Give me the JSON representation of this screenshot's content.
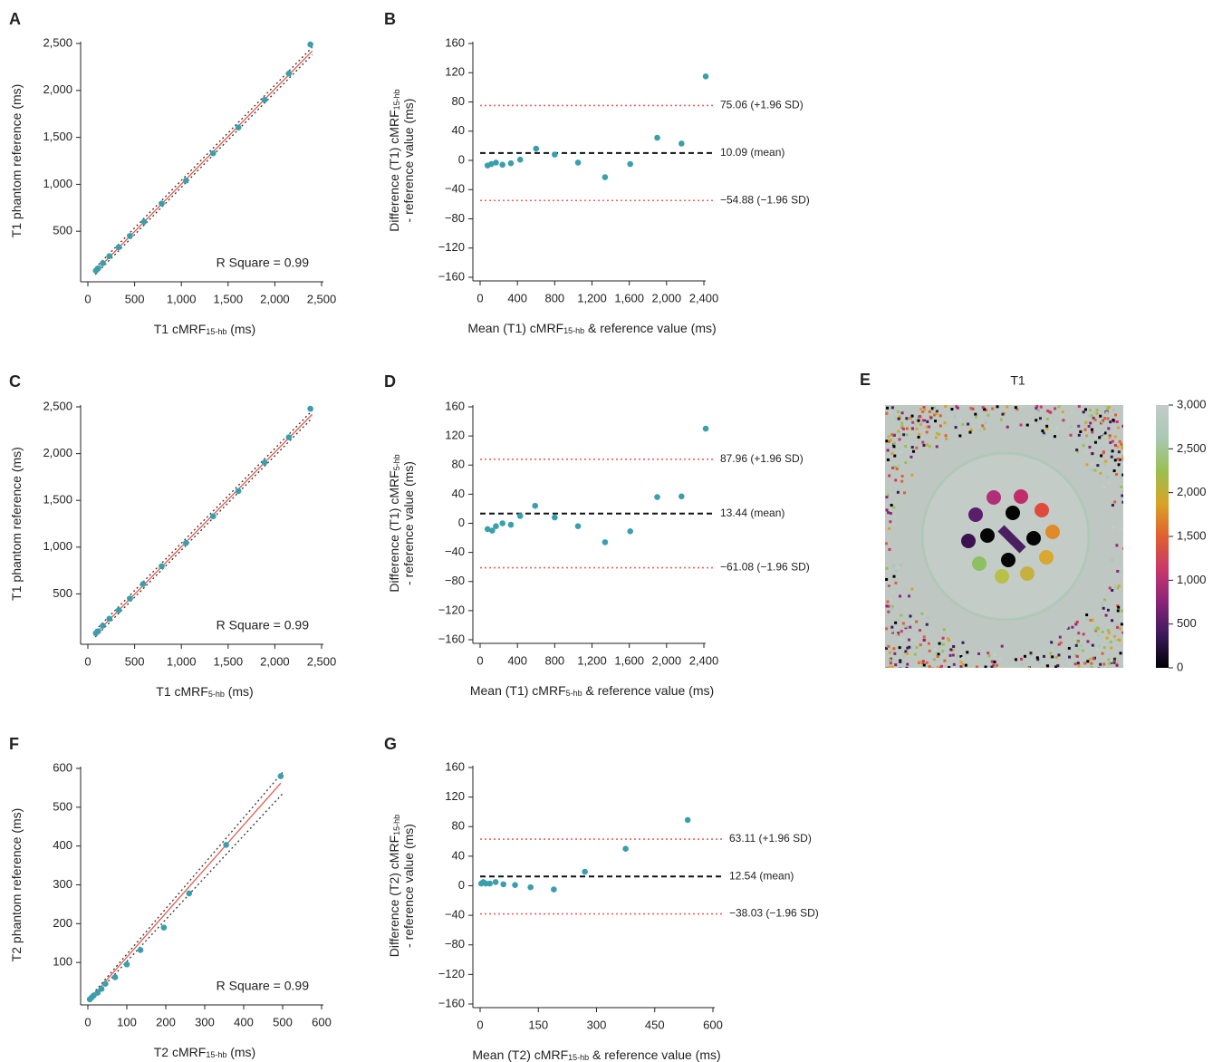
{
  "chart_data": [
    {
      "type": "scatter",
      "panel": "A",
      "xlim": [
        0,
        2500
      ],
      "ylim": [
        0,
        2500
      ],
      "xticks": [
        0,
        500,
        {
          "value": 1000,
          "label": "1,000"
        },
        {
          "value": 1500,
          "label": "1,500"
        },
        {
          "value": 2000,
          "label": "2,000"
        },
        {
          "value": 2500,
          "label": "2,500"
        }
      ],
      "yticks": [
        500,
        {
          "value": 1000,
          "label": "1,000"
        },
        {
          "value": 1500,
          "label": "1,500"
        },
        {
          "value": 2000,
          "label": "2,000"
        },
        {
          "value": 2500,
          "label": "2,500"
        }
      ],
      "xlabel": [
        [
          "T1 cMRF",
          "15-hb",
          " (ms)"
        ]
      ],
      "ylabel": [
        [
          "T1 phantom reference (ms)"
        ]
      ],
      "annotation": "R Square = 0.99",
      "color": "#3a9fad",
      "x": [
        85,
        110,
        160,
        230,
        330,
        450,
        600,
        790,
        1050,
        1340,
        1610,
        1890,
        2150,
        2380
      ],
      "y": [
        80,
        105,
        160,
        235,
        330,
        450,
        600,
        795,
        1040,
        1330,
        1605,
        1900,
        2180,
        2490
      ],
      "lines": [
        {
          "style": "dotted",
          "color": "#333333",
          "x": [
            80,
            2400
          ],
          "y": [
            40,
            2380
          ]
        },
        {
          "style": "dotted",
          "color": "#333333",
          "x": [
            80,
            2400
          ],
          "y": [
            110,
            2460
          ]
        },
        {
          "style": "solid",
          "color": "#e8584a",
          "x": [
            80,
            2400
          ],
          "y": [
            72,
            2420
          ]
        }
      ]
    },
    {
      "type": "bland-altman",
      "panel": "B",
      "xlim": [
        0,
        2400
      ],
      "ylim": [
        -160,
        160
      ],
      "xticks": [
        0,
        400,
        800,
        {
          "value": 1200,
          "label": "1,200"
        },
        {
          "value": 1600,
          "label": "1,600"
        },
        {
          "value": 2000,
          "label": "2,000"
        },
        {
          "value": 2400,
          "label": "2,400"
        }
      ],
      "yticks": [
        {
          "value": -160,
          "label": "−160"
        },
        {
          "value": -120,
          "label": "−120"
        },
        {
          "value": -80,
          "label": "−80"
        },
        {
          "value": -40,
          "label": "−40"
        },
        0,
        40,
        80,
        120,
        160
      ],
      "xlabel": [
        [
          "Mean (T1) cMRF",
          "15-hb",
          " & reference value (ms)"
        ]
      ],
      "ylabel": [
        [
          "Difference (T1) cMRF",
          "15-hb"
        ],
        [
          "- reference value (ms)"
        ]
      ],
      "color": "#3a9fad",
      "x": [
        80,
        120,
        170,
        240,
        330,
        430,
        600,
        800,
        1050,
        1340,
        1610,
        1900,
        2160,
        2420
      ],
      "y": [
        -7,
        -5,
        -3,
        -6,
        -4,
        1,
        16,
        8,
        -3,
        -23,
        -5,
        31,
        23,
        115
      ],
      "hlines": [
        {
          "value": 75.06,
          "label": "75.06 (+1.96 SD)",
          "style": "dotted",
          "color": "#f06060"
        },
        {
          "value": 10.09,
          "label": "10.09 (mean)",
          "style": "dashed",
          "color": "#111111"
        },
        {
          "value": -54.88,
          "label": "−54.88 (−1.96 SD)",
          "style": "dotted",
          "color": "#f06060"
        }
      ]
    },
    {
      "type": "scatter",
      "panel": "C",
      "xlim": [
        0,
        2500
      ],
      "ylim": [
        0,
        2500
      ],
      "xticks": [
        0,
        500,
        {
          "value": 1000,
          "label": "1,000"
        },
        {
          "value": 1500,
          "label": "1,500"
        },
        {
          "value": 2000,
          "label": "2,000"
        },
        {
          "value": 2500,
          "label": "2,500"
        }
      ],
      "yticks": [
        500,
        {
          "value": 1000,
          "label": "1,000"
        },
        {
          "value": 1500,
          "label": "1,500"
        },
        {
          "value": 2000,
          "label": "2,000"
        },
        {
          "value": 2500,
          "label": "2,500"
        }
      ],
      "xlabel": [
        [
          "T1 cMRF",
          "5-hb",
          " (ms)"
        ]
      ],
      "ylabel": [
        [
          "T1 phantom reference (ms)"
        ]
      ],
      "annotation": "R Square = 0.99",
      "color": "#3a9fad",
      "x": [
        85,
        110,
        160,
        230,
        330,
        450,
        590,
        790,
        1050,
        1340,
        1610,
        1890,
        2150,
        2380
      ],
      "y": [
        80,
        100,
        160,
        235,
        325,
        450,
        605,
        795,
        1045,
        1330,
        1600,
        1905,
        2175,
        2480
      ],
      "lines": [
        {
          "style": "dotted",
          "color": "#333333",
          "x": [
            80,
            2400
          ],
          "y": [
            40,
            2380
          ]
        },
        {
          "style": "dotted",
          "color": "#333333",
          "x": [
            80,
            2400
          ],
          "y": [
            110,
            2460
          ]
        },
        {
          "style": "solid",
          "color": "#e8584a",
          "x": [
            80,
            2400
          ],
          "y": [
            72,
            2420
          ]
        }
      ]
    },
    {
      "type": "bland-altman",
      "panel": "D",
      "xlim": [
        0,
        2400
      ],
      "ylim": [
        -160,
        160
      ],
      "xticks": [
        0,
        400,
        800,
        {
          "value": 1200,
          "label": "1,200"
        },
        {
          "value": 1600,
          "label": "1,600"
        },
        {
          "value": 2000,
          "label": "2,000"
        },
        {
          "value": 2400,
          "label": "2,400"
        }
      ],
      "yticks": [
        {
          "value": -160,
          "label": "−160"
        },
        {
          "value": -120,
          "label": "−120"
        },
        {
          "value": -80,
          "label": "−80"
        },
        {
          "value": -40,
          "label": "−40"
        },
        0,
        40,
        80,
        120,
        160
      ],
      "xlabel": [
        [
          "Mean (T1) cMRF",
          "5-hb",
          " & reference value (ms)"
        ]
      ],
      "ylabel": [
        [
          "Difference (T1) cMRF",
          "5-hb"
        ],
        [
          "- reference value (ms)"
        ]
      ],
      "color": "#3a9fad",
      "x": [
        80,
        130,
        170,
        240,
        330,
        430,
        590,
        800,
        1050,
        1340,
        1610,
        1900,
        2160,
        2420
      ],
      "y": [
        -8,
        -10,
        -4,
        0,
        -2,
        10,
        24,
        8,
        -4,
        -26,
        -11,
        36,
        37,
        130
      ],
      "hlines": [
        {
          "value": 87.96,
          "label": "87.96 (+1.96 SD)",
          "style": "dotted",
          "color": "#f06060"
        },
        {
          "value": 13.44,
          "label": "13.44 (mean)",
          "style": "dashed",
          "color": "#111111"
        },
        {
          "value": -61.08,
          "label": "−61.08 (−1.96 SD)",
          "style": "dotted",
          "color": "#f06060"
        }
      ]
    },
    {
      "type": "image",
      "panel": "E",
      "title": "T1",
      "colorbar_lim": [
        0,
        3000
      ],
      "colorbar_ticks": [
        0,
        500,
        {
          "value": 1000,
          "label": "1,000"
        },
        {
          "value": 1500,
          "label": "1,500"
        },
        {
          "value": 2000,
          "label": "2,000"
        },
        {
          "value": 2500,
          "label": "2,500"
        },
        {
          "value": 3000,
          "label": "3,000"
        }
      ],
      "colormap": [
        "#000000",
        "#3a1a5c",
        "#8a2478",
        "#c8386a",
        "#e0602f",
        "#d9a326",
        "#98c050",
        "#a9c8b4",
        "#c2ccc8"
      ]
    },
    {
      "type": "scatter",
      "panel": "F",
      "xlim": [
        0,
        600
      ],
      "ylim": [
        0,
        600
      ],
      "xticks": [
        0,
        100,
        200,
        300,
        400,
        500,
        600
      ],
      "yticks": [
        100,
        200,
        300,
        400,
        500,
        600
      ],
      "xlabel": [
        [
          "T2 cMRF",
          "15-hb",
          " (ms)"
        ]
      ],
      "ylabel": [
        [
          "T2 phantom reference (ms)"
        ]
      ],
      "annotation": "R Square = 0.99",
      "color": "#3a9fad",
      "x": [
        5,
        10,
        15,
        25,
        35,
        45,
        70,
        100,
        135,
        195,
        260,
        355,
        495
      ],
      "y": [
        5,
        10,
        15,
        22,
        32,
        45,
        62,
        95,
        132,
        190,
        278,
        403,
        580
      ],
      "lines": [
        {
          "style": "dotted",
          "color": "#333333",
          "x": [
            5,
            500
          ],
          "y": [
            10,
            590
          ]
        },
        {
          "style": "dotted",
          "color": "#333333",
          "x": [
            5,
            500
          ],
          "y": [
            0,
            535
          ]
        },
        {
          "style": "solid",
          "color": "#e8584a",
          "x": [
            0,
            495
          ],
          "y": [
            0,
            562
          ]
        }
      ]
    },
    {
      "type": "bland-altman",
      "panel": "G",
      "xlim": [
        0,
        600
      ],
      "ylim": [
        -160,
        160
      ],
      "xticks": [
        0,
        150,
        300,
        450,
        600
      ],
      "yticks": [
        {
          "value": -160,
          "label": "−160"
        },
        {
          "value": -120,
          "label": "−120"
        },
        {
          "value": -80,
          "label": "−80"
        },
        {
          "value": -40,
          "label": "−40"
        },
        0,
        40,
        80,
        120,
        160
      ],
      "xlabel": [
        [
          "Mean (T2) cMRF",
          "15-hb",
          " & reference value (ms)"
        ]
      ],
      "ylabel": [
        [
          "Difference (T2) cMRF",
          "15-hb"
        ],
        [
          "- reference value (ms)"
        ]
      ],
      "color": "#3a9fad",
      "x": [
        3,
        8,
        15,
        25,
        40,
        60,
        90,
        130,
        190,
        270,
        375,
        535
      ],
      "y": [
        3,
        5,
        3,
        3,
        5,
        2,
        1,
        -2,
        -5,
        19,
        50,
        89
      ],
      "hlines": [
        {
          "value": 63.11,
          "label": "63.11 (+1.96 SD)",
          "style": "dotted",
          "color": "#f06060"
        },
        {
          "value": 12.54,
          "label": "12.54 (mean)",
          "style": "dashed",
          "color": "#111111"
        },
        {
          "value": -38.03,
          "label": "−38.03 (−1.96 SD)",
          "style": "dotted",
          "color": "#f06060"
        }
      ]
    }
  ]
}
